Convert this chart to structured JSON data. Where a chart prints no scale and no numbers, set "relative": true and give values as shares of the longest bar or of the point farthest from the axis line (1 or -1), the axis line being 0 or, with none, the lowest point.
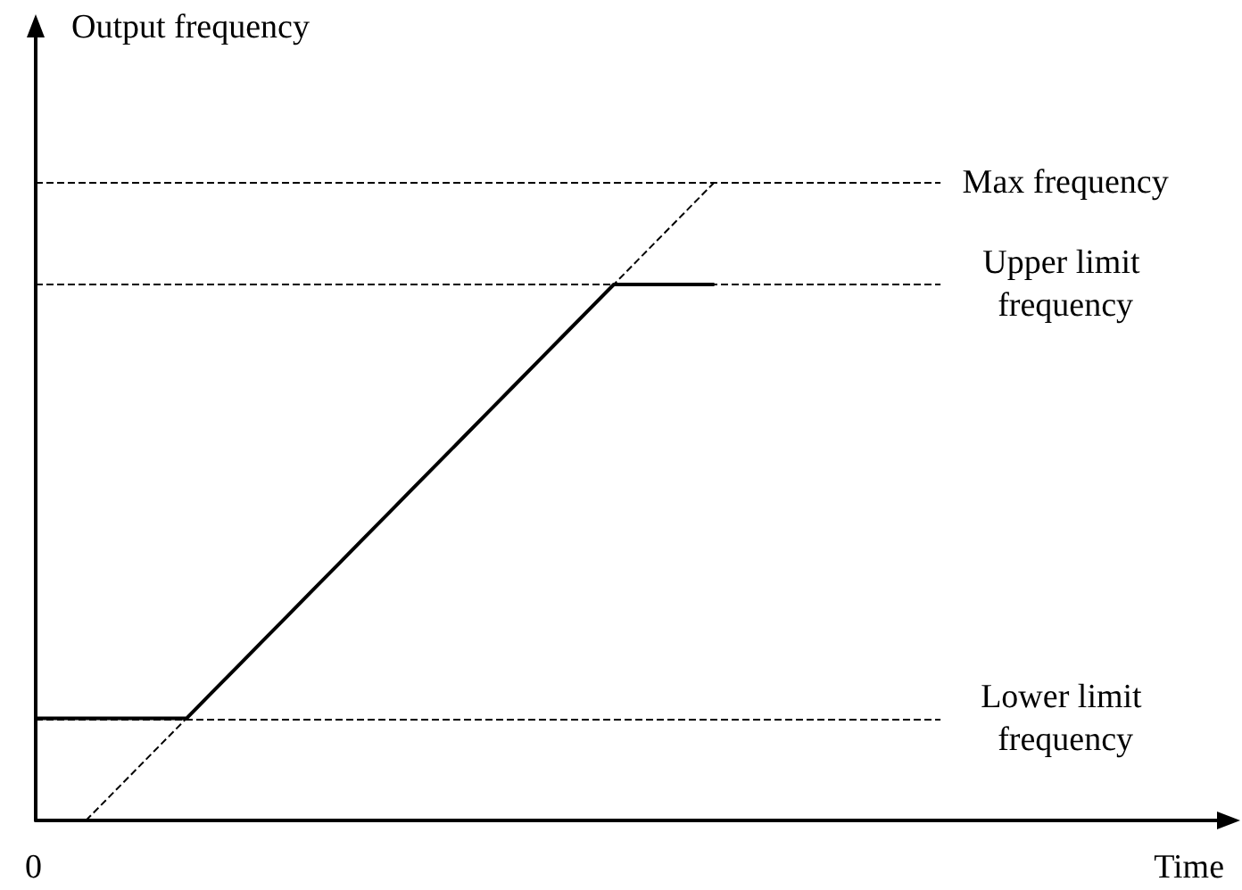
{
  "chart_data": {
    "type": "line",
    "relative": true,
    "xlabel": "Time",
    "ylabel": "Output frequency",
    "annotations": [
      "0"
    ],
    "categories": [
      null,
      null,
      null,
      null,
      null,
      null,
      null,
      null,
      null,
      null,
      null,
      null,
      null,
      null,
      null,
      null,
      null,
      null,
      null,
      null,
      null,
      null,
      null,
      null,
      null,
      null,
      null,
      null,
      null,
      null,
      null,
      null,
      null,
      null,
      null,
      null,
      null,
      null,
      null,
      null,
      null,
      null,
      null,
      null,
      null,
      null,
      null,
      null
    ],
    "series": [
      {
        "color": "#000000",
        "line_style": "solid",
        "values": [
          0.16,
          0.16,
          0.16,
          0.16,
          0.16,
          0.16,
          0.16,
          0.2,
          0.24,
          0.28,
          0.32,
          0.36,
          0.4,
          0.44,
          0.48,
          0.52,
          0.56,
          0.6,
          0.64,
          0.68,
          0.72,
          0.76,
          0.8,
          0.84,
          0.84,
          0.84,
          0.84,
          0.84,
          null,
          null,
          null,
          null,
          null,
          null,
          null,
          null,
          null,
          null,
          null,
          null,
          null,
          null,
          null,
          null,
          null,
          null,
          null,
          null
        ]
      },
      {
        "color": "#000000",
        "line_style": "dashed",
        "values": [
          null,
          null,
          0,
          0.04,
          0.08,
          0.12,
          0.16,
          0.2,
          0.24,
          0.28,
          0.32,
          0.36,
          0.4,
          0.44,
          0.48,
          0.52,
          0.56,
          0.6,
          0.64,
          0.68,
          0.72,
          0.76,
          0.8,
          0.84,
          0.88,
          0.92,
          0.96,
          1,
          null,
          null,
          null,
          null,
          null,
          null,
          null,
          null,
          null,
          null,
          null,
          null,
          null,
          null,
          null,
          null,
          null,
          null,
          null,
          null
        ]
      }
    ],
    "ref_lines": [
      {
        "axis": "y",
        "value": 1,
        "label": "Max frequency",
        "color": "#000000",
        "line_style": "dashed"
      },
      {
        "axis": "y",
        "value": 0.84,
        "label": "Upper limit frequency",
        "color": "#000000",
        "line_style": "dashed"
      },
      {
        "axis": "y",
        "value": 0.16,
        "label": "Lower limit frequency",
        "color": "#000000",
        "line_style": "dashed"
      }
    ],
    "marker": "none",
    "grid": false
  }
}
